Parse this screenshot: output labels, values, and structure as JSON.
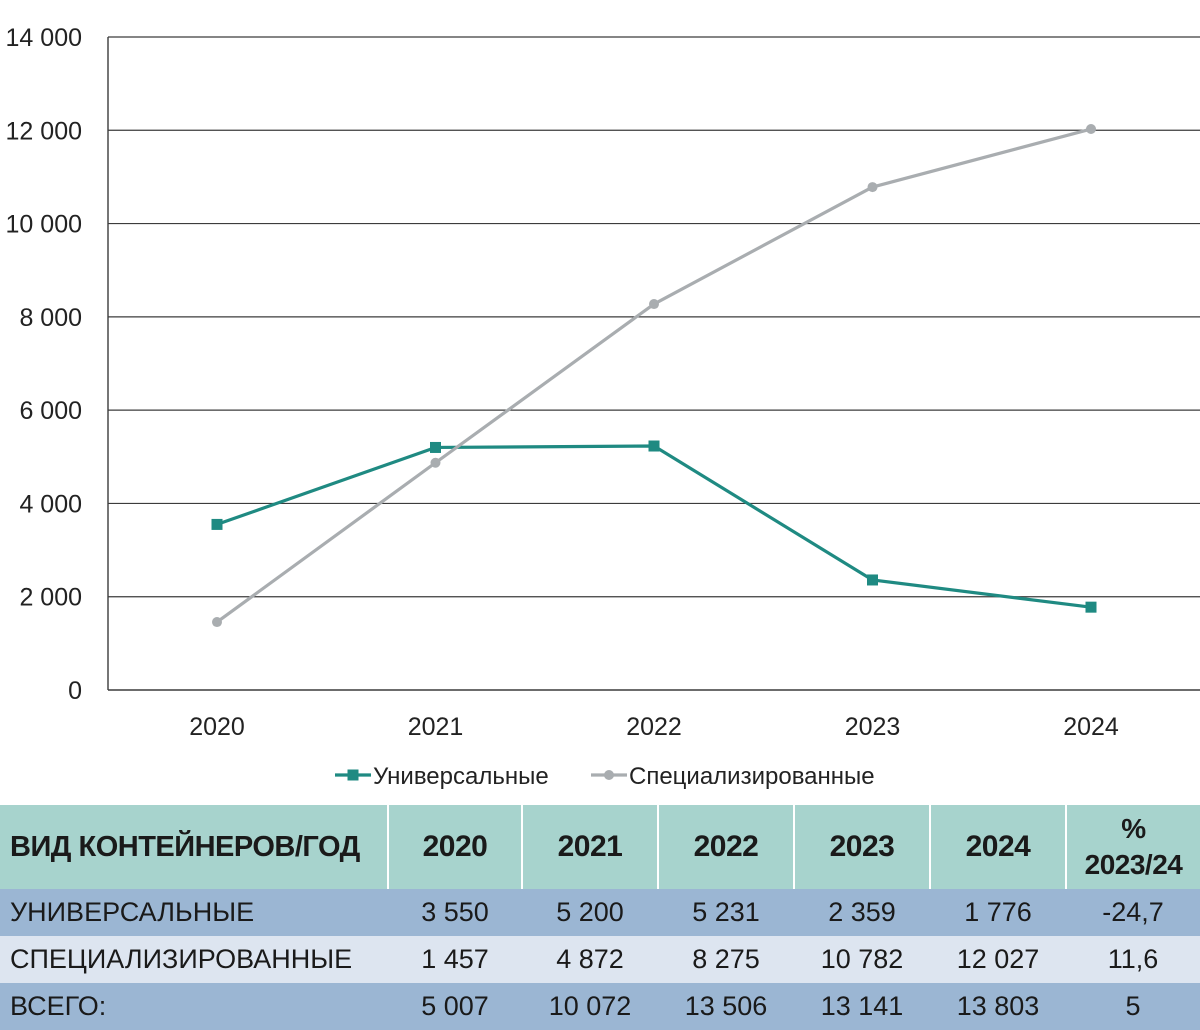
{
  "chart_data": {
    "type": "line",
    "title": "",
    "xlabel": "",
    "ylabel": "",
    "categories": [
      "2020",
      "2021",
      "2022",
      "2023",
      "2024"
    ],
    "ylim": [
      0,
      14000
    ],
    "yticks": [
      "0",
      "2 000",
      "4 000",
      "6 000",
      "8 000",
      "10 000",
      "12 000",
      "14 000"
    ],
    "grid": "horizontal",
    "legend_position": "bottom",
    "series": [
      {
        "name": "Универсальные",
        "values": [
          3550,
          5200,
          5231,
          2359,
          1776
        ],
        "color": "#1f8a82",
        "marker": "square"
      },
      {
        "name": "Специализированные",
        "values": [
          1457,
          4872,
          8275,
          10782,
          12027
        ],
        "color": "#a9adb0",
        "marker": "circle"
      }
    ]
  },
  "table": {
    "header": {
      "label": "ВИД КОНТЕЙНЕРОВ/ГОД",
      "years": [
        "2020",
        "2021",
        "2022",
        "2023",
        "2024"
      ],
      "pct_line1": "%",
      "pct_line2": "2023/24"
    },
    "rows": [
      {
        "label": "УНИВЕРСАЛЬНЫЕ",
        "values": [
          "3 550",
          "5 200",
          "5 231",
          "2 359",
          "1 776"
        ],
        "pct": "-24,7"
      },
      {
        "label": "СПЕЦИАЛИЗИРОВАННЫЕ",
        "values": [
          "1 457",
          "4 872",
          "8 275",
          "10 782",
          "12 027"
        ],
        "pct": "11,6"
      },
      {
        "label": "ВСЕГО:",
        "values": [
          "5 007",
          "10 072",
          "13 506",
          "13 141",
          "13 803"
        ],
        "pct": "5"
      }
    ]
  }
}
